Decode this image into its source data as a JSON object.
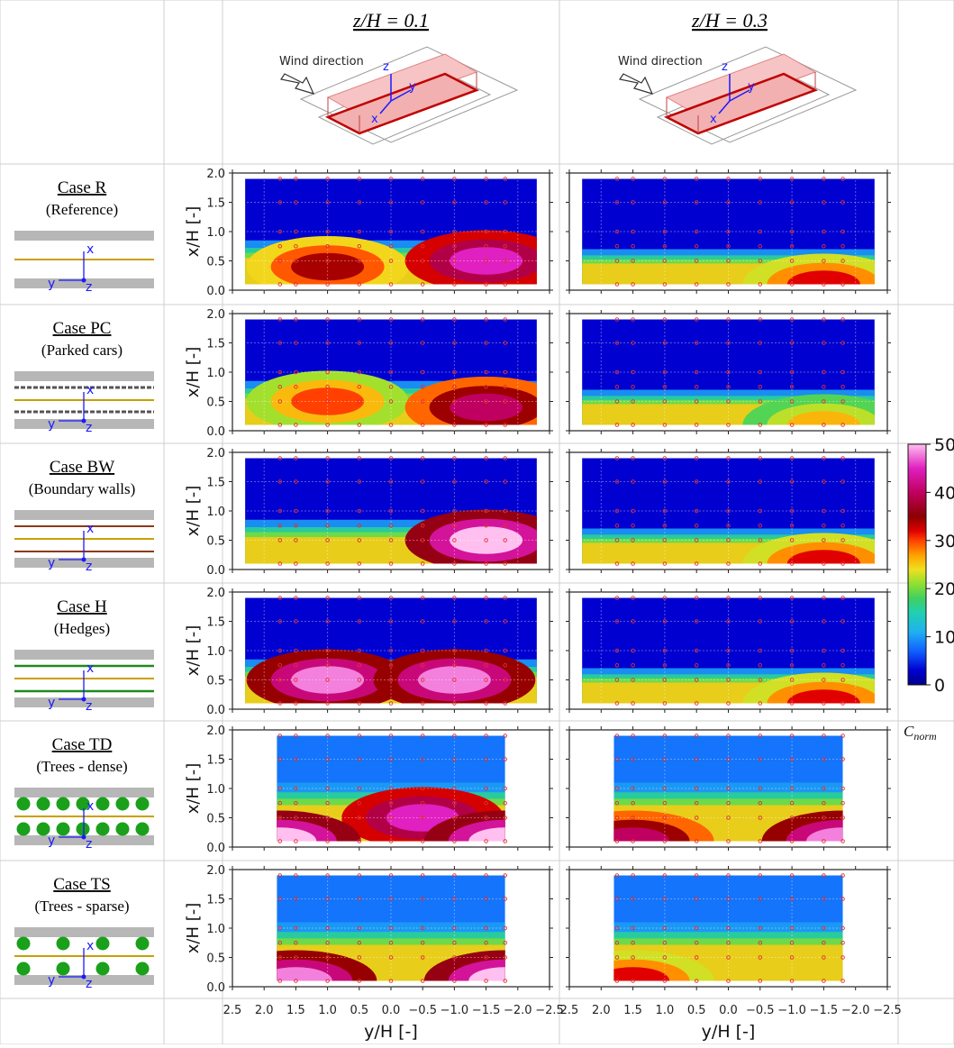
{
  "column_headers": [
    "z/H = 0.1",
    "z/H = 0.3"
  ],
  "wind_direction_label": "Wind direction",
  "axis_glyphs": {
    "x": "x",
    "y": "y",
    "z": "z"
  },
  "cases": [
    {
      "title": "Case R",
      "subtitle": "(Reference)",
      "type": "ref"
    },
    {
      "title": "Case PC",
      "subtitle": "(Parked cars)",
      "type": "pc"
    },
    {
      "title": "Case BW",
      "subtitle": "(Boundary walls)",
      "type": "bw"
    },
    {
      "title": "Case H",
      "subtitle": "(Hedges)",
      "type": "h"
    },
    {
      "title": "Case TD",
      "subtitle": "(Trees - dense)",
      "type": "td"
    },
    {
      "title": "Case TS",
      "subtitle": "(Trees - sparse)",
      "type": "ts"
    }
  ],
  "colors": {
    "building": "#b7b7b7",
    "road_line": "#c8a000",
    "parked_cars": "#555555",
    "wall": "#8b3a1a",
    "hedge": "#1e8a1e",
    "tree": "#1aa01a",
    "axis_arrow": "#1a1aff",
    "sample_point": "#e03030"
  },
  "chart_data": {
    "type": "heatmap",
    "ylabel": "x/H [-]",
    "xlabel": "y/H [-]",
    "xticks": [
      "2.5",
      "2.0",
      "1.5",
      "1.0",
      "0.5",
      "0.0",
      "−0.5",
      "−1.0",
      "−1.5",
      "−2.0",
      "−2.5"
    ],
    "yticks": [
      "0.0",
      "0.5",
      "1.0",
      "1.5",
      "2.0"
    ],
    "xlim": [
      2.5,
      -2.5
    ],
    "ylim": [
      0.0,
      2.0
    ],
    "sample_x": [
      1.75,
      1.5,
      1.0,
      0.5,
      0.0,
      -0.5,
      -1.0,
      -1.5,
      -1.8
    ],
    "sample_y": [
      0.1,
      0.5,
      0.75,
      1.0,
      1.5,
      1.9
    ],
    "colorbar": {
      "label": "C_norm",
      "ticks": [
        "0",
        "10",
        "20",
        "30",
        "40",
        "50"
      ],
      "range": [
        0,
        50
      ],
      "colormap": "gist_ncar-like: darkblue-blue-cyan-green-yellow-orange-red-darkred-magenta-pink"
    },
    "panels": [
      {
        "case": "Case R",
        "zH": 0.1,
        "peak_regions": [
          {
            "y": 1.0,
            "x": 0.4,
            "value": 34
          },
          {
            "y": -1.5,
            "x": 0.5,
            "value": 45
          }
        ]
      },
      {
        "case": "Case R",
        "zH": 0.3,
        "peak_regions": [
          {
            "y": -1.5,
            "x": 0.1,
            "value": 32
          }
        ]
      },
      {
        "case": "Case PC",
        "zH": 0.1,
        "peak_regions": [
          {
            "y": 1.0,
            "x": 0.5,
            "value": 30
          },
          {
            "y": -1.5,
            "x": 0.4,
            "value": 40
          }
        ]
      },
      {
        "case": "Case PC",
        "zH": 0.3,
        "peak_regions": [
          {
            "y": -1.5,
            "x": 0.1,
            "value": 26
          }
        ]
      },
      {
        "case": "Case BW",
        "zH": 0.1,
        "peak_regions": [
          {
            "y": -1.5,
            "x": 0.5,
            "value": 50
          }
        ]
      },
      {
        "case": "Case BW",
        "zH": 0.3,
        "peak_regions": [
          {
            "y": -1.5,
            "x": 0.1,
            "value": 32
          }
        ]
      },
      {
        "case": "Case H",
        "zH": 0.1,
        "peak_regions": [
          {
            "y": 1.0,
            "x": 0.5,
            "value": 48
          },
          {
            "y": -1.0,
            "x": 0.5,
            "value": 48
          }
        ]
      },
      {
        "case": "Case H",
        "zH": 0.3,
        "peak_regions": [
          {
            "y": -1.5,
            "x": 0.1,
            "value": 32
          }
        ]
      },
      {
        "case": "Case TD",
        "zH": 0.1,
        "peak_regions": [
          {
            "y": -0.5,
            "x": 0.5,
            "value": 45
          },
          {
            "y": 1.75,
            "x": 0.1,
            "value": 50
          },
          {
            "y": -1.8,
            "x": 0.1,
            "value": 50
          }
        ]
      },
      {
        "case": "Case TD",
        "zH": 0.3,
        "peak_regions": [
          {
            "y": 1.5,
            "x": 0.1,
            "value": 40
          },
          {
            "y": -1.8,
            "x": 0.1,
            "value": 48
          }
        ]
      },
      {
        "case": "Case TS",
        "zH": 0.1,
        "peak_regions": [
          {
            "y": 1.5,
            "x": 0.1,
            "value": 48
          },
          {
            "y": -1.8,
            "x": 0.1,
            "value": 50
          }
        ]
      },
      {
        "case": "Case TS",
        "zH": 0.3,
        "peak_regions": [
          {
            "y": 1.5,
            "x": 0.1,
            "value": 32
          }
        ]
      }
    ]
  }
}
